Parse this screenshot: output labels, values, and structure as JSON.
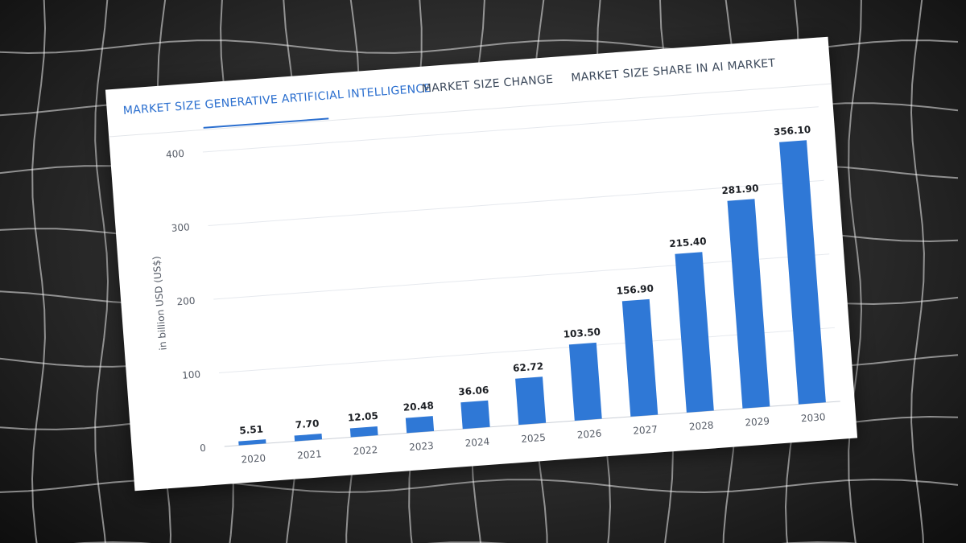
{
  "tabs": [
    {
      "label": "MARKET SIZE GENERATIVE ARTIFICIAL INTELLIGENCE",
      "active": true
    },
    {
      "label": "MARKET SIZE CHANGE",
      "active": false
    },
    {
      "label": "MARKET SIZE SHARE IN AI MARKET",
      "active": false
    }
  ],
  "colors": {
    "accent": "#2b6fcf",
    "bar": "#2f78d6"
  },
  "chart_data": {
    "type": "bar",
    "categories": [
      "2020",
      "2021",
      "2022",
      "2023",
      "2024",
      "2025",
      "2026",
      "2027",
      "2028",
      "2029",
      "2030"
    ],
    "values": [
      5.51,
      7.7,
      12.05,
      20.48,
      36.06,
      62.72,
      103.5,
      156.9,
      215.4,
      281.9,
      356.1
    ],
    "value_labels": [
      "5.51",
      "7.70",
      "12.05",
      "20.48",
      "36.06",
      "62.72",
      "103.50",
      "156.90",
      "215.40",
      "281.90",
      "356.10"
    ],
    "ylabel": "in billion USD (US$)",
    "yticks": [
      0,
      100,
      200,
      300,
      400
    ],
    "ylim": [
      0,
      400
    ],
    "grid": true,
    "legend": "none"
  }
}
